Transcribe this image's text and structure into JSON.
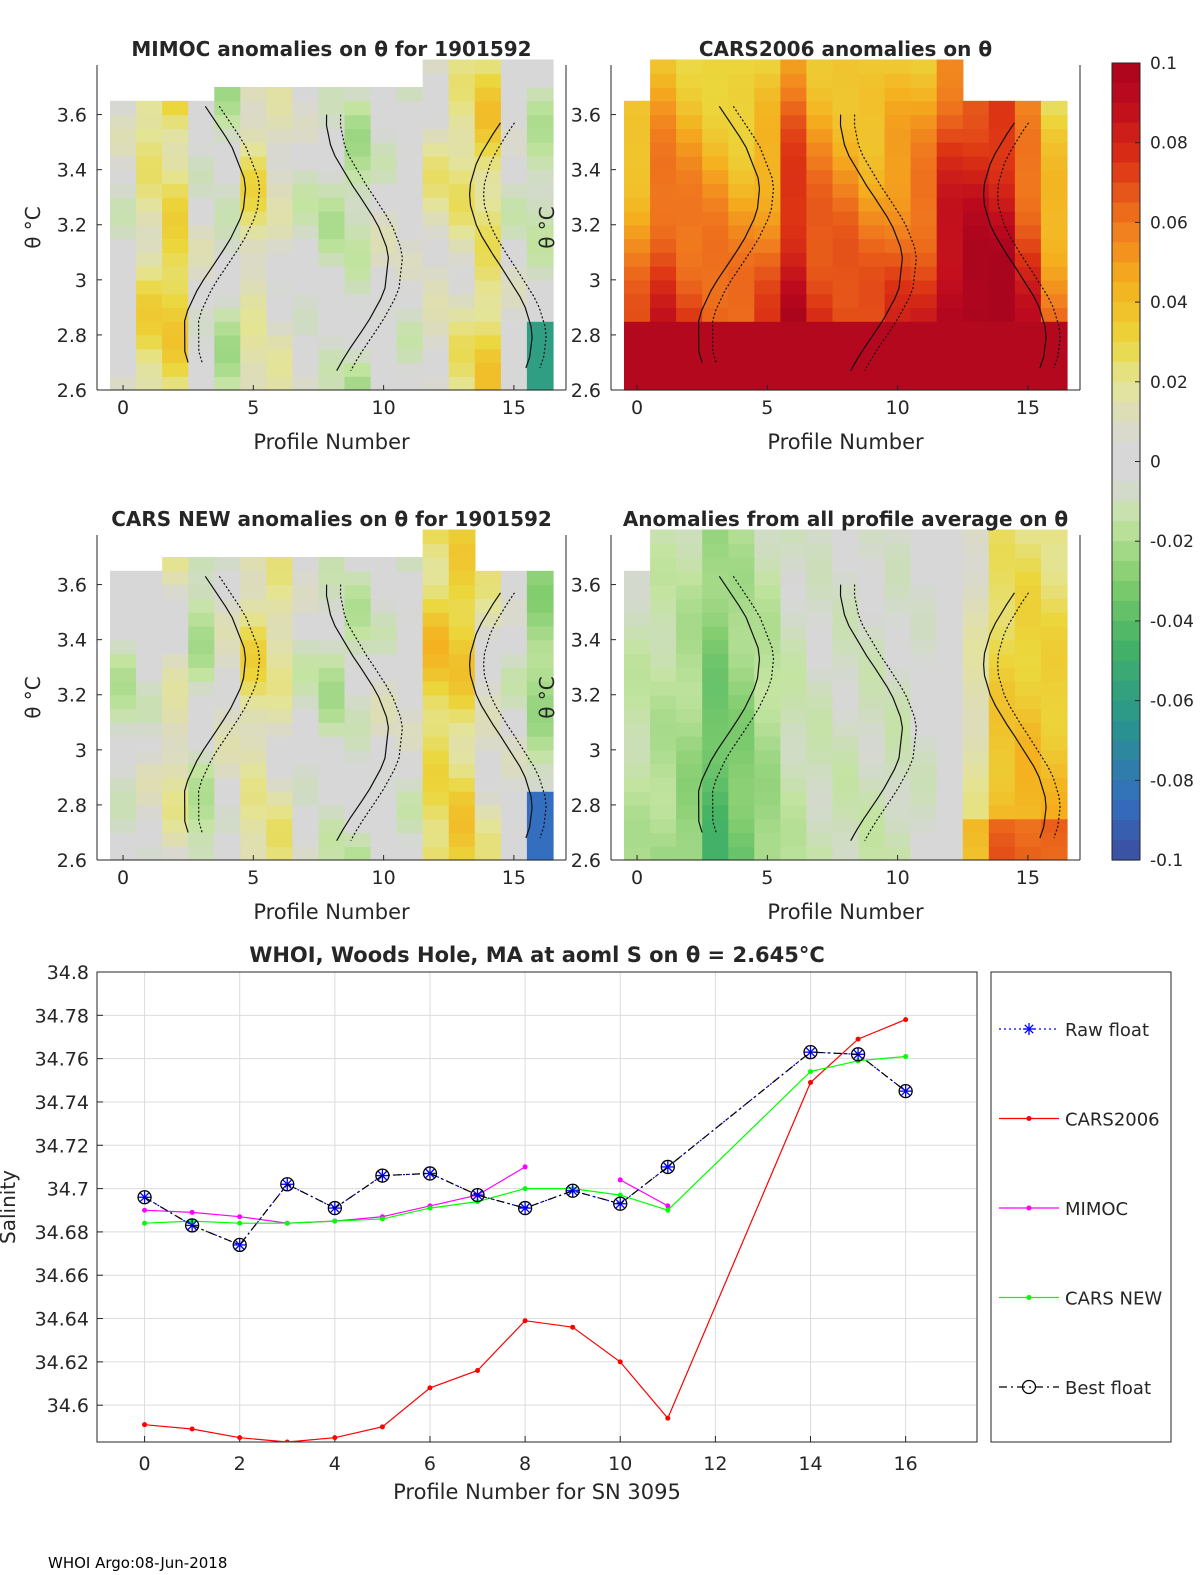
{
  "chart_data": [
    {
      "type": "heatmap",
      "id": "mimoc",
      "title": "MIMOC anomalies on θ  for 1901592",
      "xlabel": "Profile Number",
      "ylabel": "θ °C",
      "xticks": [
        "0",
        "5",
        "10",
        "15"
      ],
      "yticks": [
        "2.6",
        "2.8",
        "3",
        "3.2",
        "3.4",
        "3.6"
      ],
      "xlim": [
        -1,
        17
      ],
      "ylim": [
        2.6,
        3.78
      ],
      "profiles": [
        0,
        1,
        2,
        3,
        4,
        5,
        6,
        7,
        8,
        9,
        10,
        11,
        12,
        13,
        14,
        15,
        16
      ],
      "top_theta": [
        3.65,
        3.65,
        3.65,
        3.65,
        3.7,
        3.7,
        3.7,
        3.7,
        3.7,
        3.7,
        3.7,
        3.7,
        3.76,
        3.76,
        3.76,
        3.76,
        3.76
      ],
      "bottom_theta": [
        2.6,
        2.6,
        2.6,
        2.6,
        2.6,
        2.6,
        2.6,
        2.6,
        2.6,
        2.6,
        2.6,
        2.6,
        2.6,
        2.6,
        2.6,
        2.6,
        2.6
      ],
      "base_anomaly": [
        0.0,
        0.022,
        0.028,
        0.0,
        -0.01,
        0.018,
        0.008,
        -0.004,
        -0.008,
        -0.012,
        0.0,
        0.0,
        0.012,
        0.018,
        0.026,
        0.0,
        -0.01
      ]
    },
    {
      "type": "heatmap",
      "id": "cars2006",
      "title": "CARS2006 anomalies on θ",
      "xlabel": "Profile Number",
      "ylabel": "θ °C",
      "xticks": [
        "0",
        "5",
        "10",
        "15"
      ],
      "yticks": [
        "2.6",
        "2.8",
        "3",
        "3.2",
        "3.4",
        "3.6"
      ],
      "xlim": [
        -1,
        17
      ],
      "ylim": [
        2.6,
        3.78
      ],
      "profiles": [
        0,
        1,
        2,
        3,
        4,
        5,
        6,
        7,
        8,
        9,
        10,
        11,
        12,
        13,
        14,
        15,
        16
      ],
      "top_theta": [
        3.65,
        3.76,
        3.76,
        3.76,
        3.76,
        3.76,
        3.76,
        3.76,
        3.76,
        3.76,
        3.76,
        3.76,
        3.76,
        3.65,
        3.65,
        3.65,
        3.65
      ],
      "bottom_theta": [
        2.6,
        2.6,
        2.6,
        2.6,
        2.6,
        2.6,
        2.6,
        2.6,
        2.6,
        2.6,
        2.6,
        2.6,
        2.6,
        2.6,
        2.6,
        2.6,
        2.6
      ],
      "base_anomaly": [
        0.045,
        0.062,
        0.055,
        0.05,
        0.045,
        0.05,
        0.075,
        0.06,
        0.055,
        0.05,
        0.055,
        0.06,
        0.08,
        0.085,
        0.085,
        0.065,
        0.04
      ]
    },
    {
      "type": "heatmap",
      "id": "carsnew",
      "title": "CARS NEW anomalies on θ for 1901592",
      "xlabel": "Profile Number",
      "ylabel": "θ °C",
      "xticks": [
        "0",
        "5",
        "10",
        "15"
      ],
      "yticks": [
        "2.6",
        "2.8",
        "3",
        "3.2",
        "3.4",
        "3.6"
      ],
      "xlim": [
        -1,
        17
      ],
      "ylim": [
        2.6,
        3.78
      ],
      "profiles": [
        0,
        1,
        2,
        3,
        4,
        5,
        6,
        7,
        8,
        9,
        10,
        11,
        12,
        13,
        14,
        15,
        16
      ],
      "top_theta": [
        3.65,
        3.65,
        3.7,
        3.7,
        3.7,
        3.7,
        3.7,
        3.7,
        3.7,
        3.7,
        3.7,
        3.7,
        3.76,
        3.76,
        3.65,
        3.65,
        3.65
      ],
      "bottom_theta": [
        2.6,
        2.6,
        2.6,
        2.6,
        2.6,
        2.6,
        2.6,
        2.6,
        2.6,
        2.6,
        2.6,
        2.6,
        2.6,
        2.6,
        2.6,
        2.6,
        2.6
      ],
      "base_anomaly": [
        -0.008,
        0.0,
        0.012,
        -0.012,
        0.006,
        0.02,
        0.015,
        -0.004,
        -0.01,
        -0.008,
        0.0,
        0.0,
        0.03,
        0.03,
        0.01,
        0.0,
        -0.02
      ]
    },
    {
      "type": "heatmap",
      "id": "avg",
      "title": "Anomalies from all profile average on θ",
      "xlabel": "Profile Number",
      "ylabel": "θ °C",
      "xticks": [
        "0",
        "5",
        "10",
        "15"
      ],
      "yticks": [
        "2.6",
        "2.8",
        "3",
        "3.2",
        "3.4",
        "3.6"
      ],
      "xlim": [
        -1,
        17
      ],
      "ylim": [
        2.6,
        3.78
      ],
      "profiles": [
        0,
        1,
        2,
        3,
        4,
        5,
        6,
        7,
        8,
        9,
        10,
        11,
        12,
        13,
        14,
        15,
        16
      ],
      "top_theta": [
        3.65,
        3.78,
        3.76,
        3.76,
        3.76,
        3.76,
        3.76,
        3.76,
        3.76,
        3.76,
        3.76,
        3.76,
        3.76,
        3.76,
        3.76,
        3.76,
        3.76
      ],
      "bottom_theta": [
        2.6,
        2.6,
        2.6,
        2.6,
        2.6,
        2.6,
        2.6,
        2.6,
        2.6,
        2.6,
        2.6,
        2.6,
        2.6,
        2.6,
        2.6,
        2.6,
        2.6
      ],
      "base_anomaly": [
        -0.018,
        -0.022,
        -0.028,
        -0.045,
        -0.035,
        -0.025,
        -0.015,
        -0.012,
        -0.012,
        -0.012,
        -0.012,
        -0.008,
        0.0,
        0.02,
        0.045,
        0.048,
        0.045
      ]
    },
    {
      "type": "colorbar",
      "id": "colorbar",
      "ticks": [
        "0.1",
        "0.08",
        "0.06",
        "0.04",
        "0.02",
        "0",
        "-0.02",
        "-0.04",
        "-0.06",
        "-0.08",
        "-0.1"
      ],
      "range": [
        -0.1,
        0.1
      ]
    },
    {
      "type": "line",
      "id": "salinity",
      "title": "WHOI, Woods Hole, MA at aoml S on θ = 2.645°C",
      "xlabel": "Profile Number for SN 3095",
      "ylabel": "Salinity",
      "xlim": [
        -1,
        17.5
      ],
      "ylim": [
        34.583,
        34.8
      ],
      "xticks": [
        "0",
        "2",
        "4",
        "6",
        "8",
        "10",
        "12",
        "14",
        "16"
      ],
      "yticks": [
        "34.6",
        "34.62",
        "34.64",
        "34.66",
        "34.68",
        "34.7",
        "34.72",
        "34.74",
        "34.76",
        "34.78",
        "34.8"
      ],
      "grid": true,
      "legend_position": "outside-right",
      "series": [
        {
          "name": "Raw float",
          "color": "#0000ff",
          "style": "dotted",
          "marker": "asterisk",
          "x": [
            0,
            1,
            2,
            3,
            4,
            5,
            6,
            7,
            8,
            9,
            10,
            11,
            14,
            15,
            16
          ],
          "y": [
            34.696,
            34.683,
            34.674,
            34.702,
            34.691,
            34.706,
            34.707,
            34.697,
            34.691,
            34.699,
            34.693,
            34.71,
            34.763,
            34.762,
            34.745
          ]
        },
        {
          "name": "CARS2006",
          "color": "#ff0000",
          "style": "solid",
          "marker": "dot",
          "x": [
            0,
            1,
            2,
            3,
            4,
            5,
            6,
            7,
            8,
            9,
            10,
            11,
            14,
            15,
            16
          ],
          "y": [
            34.591,
            34.589,
            34.585,
            34.583,
            34.585,
            34.59,
            34.608,
            34.616,
            34.639,
            34.636,
            34.62,
            34.594,
            34.749,
            34.769,
            34.778
          ]
        },
        {
          "name": "MIMOC",
          "color": "#ff00ff",
          "style": "solid",
          "marker": "dot",
          "segments": [
            {
              "x": [
                0,
                1,
                2,
                3,
                4,
                5,
                6,
                7,
                8
              ],
              "y": [
                34.69,
                34.689,
                34.687,
                34.684,
                34.685,
                34.687,
                34.692,
                34.697,
                34.71
              ]
            },
            {
              "x": [
                10,
                11
              ],
              "y": [
                34.704,
                34.692
              ]
            }
          ]
        },
        {
          "name": "CARS NEW",
          "color": "#00ff00",
          "style": "solid",
          "marker": "dot",
          "x": [
            0,
            1,
            2,
            3,
            4,
            5,
            6,
            7,
            8,
            9,
            10,
            11,
            14,
            15,
            16
          ],
          "y": [
            34.684,
            34.685,
            34.684,
            34.684,
            34.685,
            34.686,
            34.691,
            34.694,
            34.7,
            34.7,
            34.697,
            34.69,
            34.754,
            34.759,
            34.761
          ]
        },
        {
          "name": "Best float",
          "color": "#000000",
          "style": "dashdot",
          "marker": "circle",
          "x": [
            0,
            1,
            2,
            3,
            4,
            5,
            6,
            7,
            8,
            9,
            10,
            11,
            14,
            15,
            16
          ],
          "y": [
            34.696,
            34.683,
            34.674,
            34.702,
            34.691,
            34.706,
            34.707,
            34.697,
            34.691,
            34.699,
            34.693,
            34.71,
            34.763,
            34.762,
            34.745
          ]
        }
      ]
    }
  ],
  "footer": "WHOI Argo:08-Jun-2018"
}
